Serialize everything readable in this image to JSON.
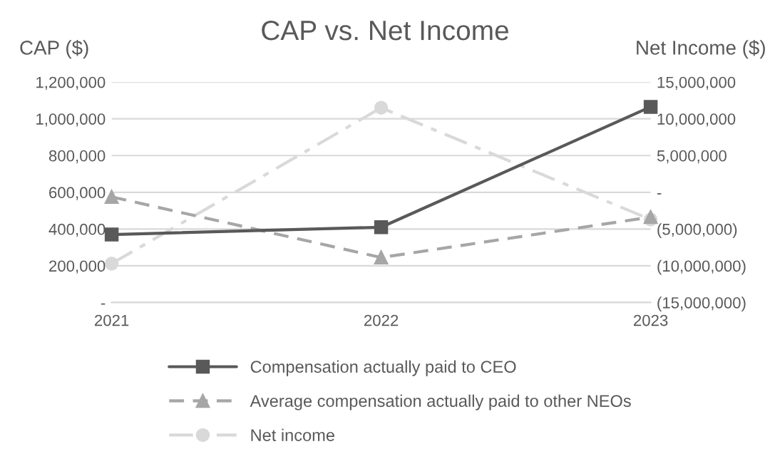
{
  "chart_data": {
    "type": "line",
    "title": "CAP vs. Net Income",
    "ylabel": "CAP ($)",
    "y2label": "Net Income ($)",
    "categories": [
      "2021",
      "2022",
      "2023"
    ],
    "series": [
      {
        "name": "Compensation actually paid to CEO",
        "color": "#595959",
        "values": [
          370000,
          410000,
          1065000
        ],
        "marker": "square",
        "line_style": "solid"
      },
      {
        "name": "Average compensation actually paid to other NEOs",
        "color": "#a6a6a6",
        "values": [
          575000,
          245000,
          465000
        ],
        "marker": "triangle",
        "line_style": "dashed"
      },
      {
        "name": "Net income",
        "color": "#d9d9d9",
        "values": [
          -9700000,
          11500000,
          -3700000
        ],
        "marker": "circle",
        "line_style": "dashed",
        "axis": "y2"
      }
    ],
    "ylim": [
      0,
      1200000
    ],
    "yticks": [
      {
        "value": 0,
        "label": "-"
      },
      {
        "value": 200000,
        "label": "200,000"
      },
      {
        "value": 400000,
        "label": "400,000"
      },
      {
        "value": 600000,
        "label": "600,000"
      },
      {
        "value": 800000,
        "label": "800,000"
      },
      {
        "value": 1000000,
        "label": "1,000,000"
      },
      {
        "value": 1200000,
        "label": "1,200,000"
      }
    ],
    "y2lim": [
      -15000000,
      15000000
    ],
    "y2ticks": [
      {
        "value": -15000000,
        "label": "(15,000,000)"
      },
      {
        "value": -10000000,
        "label": "(10,000,000)"
      },
      {
        "value": -5000000,
        "label": "(5,000,000)"
      },
      {
        "value": 0,
        "label": "-"
      },
      {
        "value": 5000000,
        "label": "5,000,000"
      },
      {
        "value": 10000000,
        "label": "10,000,000"
      },
      {
        "value": 15000000,
        "label": "15,000,000"
      }
    ],
    "grid": "y",
    "legend": "bottom"
  }
}
